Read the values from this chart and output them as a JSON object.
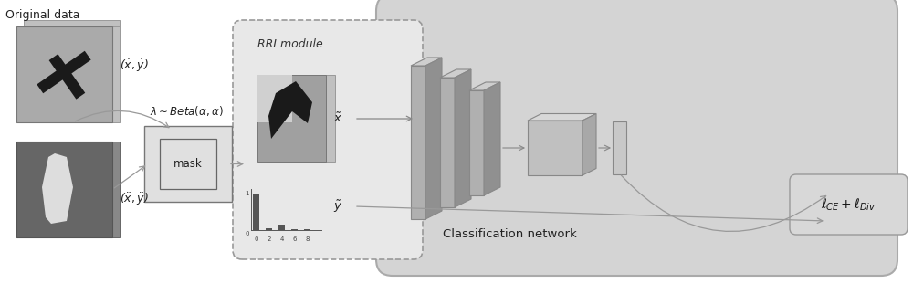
{
  "bg_color": "#ffffff",
  "original_data_label": "Original data",
  "label_xdot_ydot": "($\\dot{x}, \\dot{y}$)",
  "label_xddot_yddot": "($\\ddot{x}, \\ddot{y}$)",
  "lambda_label": "$\\lambda$$\\sim$$Beta(\\alpha,\\alpha)$",
  "mask_label": "mask",
  "rri_label": "RRI module",
  "xtilde_label": "$\\tilde{x}$",
  "ytilde_label": "$\\tilde{y}$",
  "network_label": "Classification network",
  "loss_label": "$\\ell_{CE} + \\ell_{Div}$",
  "arrow_color": "#888888",
  "img1_color": "#aaaaaa",
  "img2_color": "#666666",
  "img1_back_color": "#c8c8c8",
  "img2_back_color": "#888888",
  "mask_bg": "#e0e0e0",
  "rri_bg": "#e8e8e8",
  "net_bg": "#d4d4d4",
  "loss_bg": "#d8d8d8",
  "block_face": "#b8b8b8",
  "block_top": "#d0d0d0",
  "block_right": "#989898",
  "fc_color": "#c8c8c8",
  "thin_color": "#c8c8c8"
}
